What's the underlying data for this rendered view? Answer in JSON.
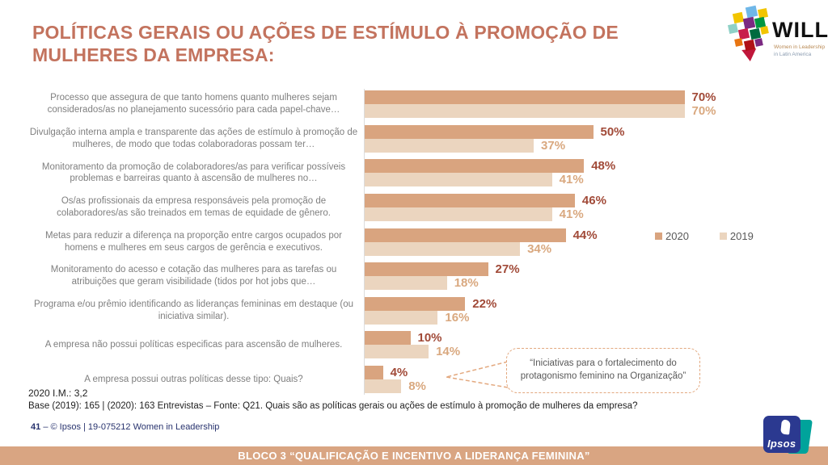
{
  "header": {
    "title": "POLÍTICAS GERAIS OU AÇÕES DE ESTÍMULO À PROMOÇÃO DE MULHERES DA EMPRESA:"
  },
  "logos": {
    "will": {
      "name": "WILL",
      "line1": "Women in Leadership",
      "line2": "in Latin America",
      "colors": [
        "#6FB7E8",
        "#F2C500",
        "#7B2982",
        "#009640",
        "#8FD1C7",
        "#C81E4B",
        "#006B3F",
        "#B01117",
        "#E87511"
      ]
    },
    "ipsos": {
      "name": "Ipsos",
      "blue": "#2B3990",
      "teal": "#00A39B"
    }
  },
  "chart_data": {
    "type": "bar",
    "orientation": "horizontal",
    "value_suffix": "%",
    "xlim": [
      0,
      100
    ],
    "grid": false,
    "legend_position": "right-middle",
    "categories": [
      "Processo que assegura de que tanto homens quanto mulheres sejam considerados/as no planejamento sucessório para cada papel-chave…",
      "Divulgação interna ampla e transparente das ações de estímulo à promoção de mulheres, de modo que todas colaboradoras possam ter…",
      "Monitoramento da promoção de colaboradores/as para verificar possíveis problemas e barreiras quanto à ascensão de mulheres no…",
      "Os/as profissionais da empresa responsáveis pela promoção de colaboradores/as são treinados em temas de equidade de gênero.",
      "Metas para reduzir a diferença na proporção entre cargos ocupados por homens e mulheres em seus cargos de gerência e executivos.",
      "Monitoramento do acesso e cotação das mulheres para as tarefas ou atribuições que geram visibilidade (tidos por hot jobs que…",
      "Programa e/ou prêmio identificando as lideranças femininas em destaque (ou iniciativa similar).",
      "A empresa não possui políticas especificas para ascensão de mulheres.",
      "A empresa possui outras políticas desse tipo: Quais?"
    ],
    "series": [
      {
        "name": "2020",
        "color": "#D9A47F",
        "label_color": "#A14A38",
        "values": [
          70,
          50,
          48,
          46,
          44,
          27,
          22,
          10,
          4
        ]
      },
      {
        "name": "2019",
        "color": "#EBD5BF",
        "label_color": "#D9A87F",
        "values": [
          70,
          37,
          41,
          41,
          34,
          18,
          16,
          14,
          8
        ]
      }
    ],
    "callout": "“Iniciativas para o fortalecimento do protagonismo feminino na Organização”"
  },
  "notes": {
    "im": "2020 I.M.: 3,2",
    "base": "Base (2019): 165 | (2020): 163 Entrevistas – Fonte: Q21. Quais são as políticas gerais ou ações de estímulo à promoção de mulheres da empresa?"
  },
  "footer": {
    "page": "41",
    "dash": "–",
    "credit": "© Ipsos | 19-075212 Women in Leadership",
    "bar": "BLOCO 3 “QUALIFICAÇÃO E INCENTIVO A LIDERANÇA  FEMININA”"
  }
}
